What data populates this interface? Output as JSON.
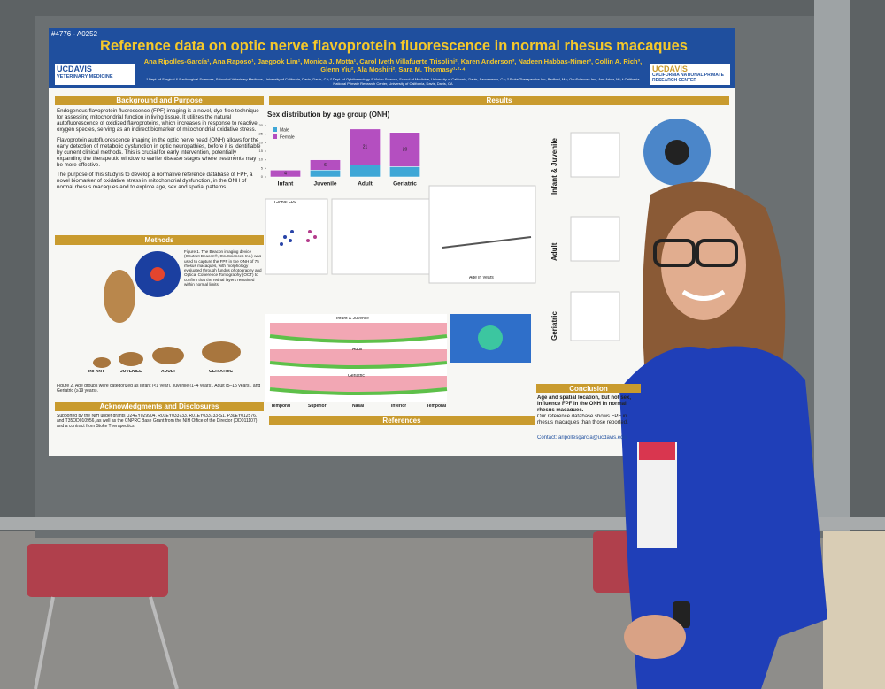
{
  "poster": {
    "id": "#4776 - A0252",
    "title": "Reference data on optic nerve flavoprotein fluorescence in normal rhesus macaques",
    "authors": "Ana Ripolles-García¹, Ana Raposo¹, Jaegook Lim¹, Monica J. Motta¹, Carol Iveth Villafuerte Trisolini², Karen Anderson³, Nadeen Habbas-Nimer³, Collin A. Rich³, Glenn Yiu², Ala Moshiri², Sara M. Thomasy¹·²·⁴",
    "affiliations": "¹ Dept. of Surgical & Radiological Sciences, School of Veterinary Medicine, University of California, Davis, Davis, CA; ² Dept. of Ophthalmology & Vision Science, School of Medicine, University of California, Davis, Sacramento, CA; ³ Stoke Therapeutics Inc, Bedford, MA; OcuSciences Inc., Ann Arbor, MI; ⁴ California National Primate Research Center, University of California, Davis, Davis, CA",
    "logo_left": {
      "name": "UCDAVIS",
      "unit": "VETERINARY MEDICINE"
    },
    "logo_right": {
      "name": "UCDAVIS",
      "unit": "CALIFORNIA NATIONAL PRIMATE RESEARCH CENTER"
    },
    "sections": {
      "background": {
        "heading": "Background and Purpose",
        "paragraphs": [
          "Endogenous flavoprotein fluorescence (FPF) imaging is a novel, dye-free technique for assessing mitochondrial function in living tissue. It utilizes the natural autofluorescence of oxidized flavoproteins, which increases in response to reactive oxygen species, serving as an indirect biomarker of mitochondrial oxidative stress.",
          "Flavoprotein autofluorescence imaging in the optic nerve head (ONH) allows for the early detection of metabolic dysfunction in optic neuropathies, before it is identifiable by current clinical methods. This is crucial for early intervention, potentially expanding the therapeutic window to earlier disease stages where treatments may be more effective.",
          "The purpose of this study is to develop a normative reference database of FPF, a novel biomarker of oxidative stress in mitochondrial dysfunction, in the ONH of normal rhesus macaques and to explore age, sex and spatial patterns."
        ]
      },
      "methods": {
        "heading": "Methods",
        "figure_caption": "Figure 1. The Beacon imaging device (OcuMet Beacon®, OcuSciences Inc.) was used to capture the FPF in the ONH of 75 rhesus macaques, with morphology evaluated through fundus photography and Optical Coherence Tomography (OCT) to confirm that the retinal layers remained within normal limits.",
        "stages": [
          "INFANT",
          "JUVENILE",
          "ADULT",
          "GERIATRIC"
        ],
        "figure2_caption": "Figure 2. Age groups were categorized as Infant (<1 year), Juvenile (1–4 years), Adult (5–15 years), and Geriatric (≥19 years)."
      },
      "acknowledgments": {
        "heading": "Acknowledgments and Disclosures",
        "text": "Supported by the NIH under grants U24EY029904, R01EY033733, R01EY033733-S1, P30EY012576, and T35OD010956, as well as the CNPRC Base Grant from the NIH Office of the Director (OD011107) and a contract from Stoke Therapeutics."
      },
      "results": {
        "heading": "Results",
        "rows": [
          "Infant & Juvenile",
          "Adult",
          "Geriatric"
        ],
        "panel_global": "Global FPF",
        "scatter_xlabel": "Age in years",
        "profile_labels": [
          "Temporal",
          "Superior",
          "Nasal",
          "Inferior",
          "Temporal"
        ],
        "profile_titles": [
          "Infant & Juvenile",
          "Adult",
          "Geriatric"
        ]
      },
      "references": {
        "heading": "References"
      },
      "conclusion": {
        "heading": "Conclusion",
        "text": "Age and spatial location, but not sex, influence FPF in the ONH in normal rhesus macaques.",
        "text2": "Our reference database shows FPF in rhesus macaques than those reported.",
        "contact": "Contact: aripollesgarcia@ucdavis.edu"
      }
    },
    "chart": {
      "type": "bar",
      "title": "Sex distribution by age group (ONH)",
      "categories": [
        "Infant",
        "Juvenile",
        "Adult",
        "Geriatric"
      ],
      "series": [
        {
          "name": "Male",
          "color": "#3fa7d6",
          "values": [
            0,
            4,
            7,
            6
          ]
        },
        {
          "name": "Female",
          "color": "#b44fc0",
          "values": [
            4,
            6,
            21,
            20
          ]
        }
      ],
      "ylim": [
        0,
        30
      ],
      "yticks": [
        0,
        5,
        10,
        15,
        20,
        25,
        30
      ],
      "stacked": true
    }
  }
}
